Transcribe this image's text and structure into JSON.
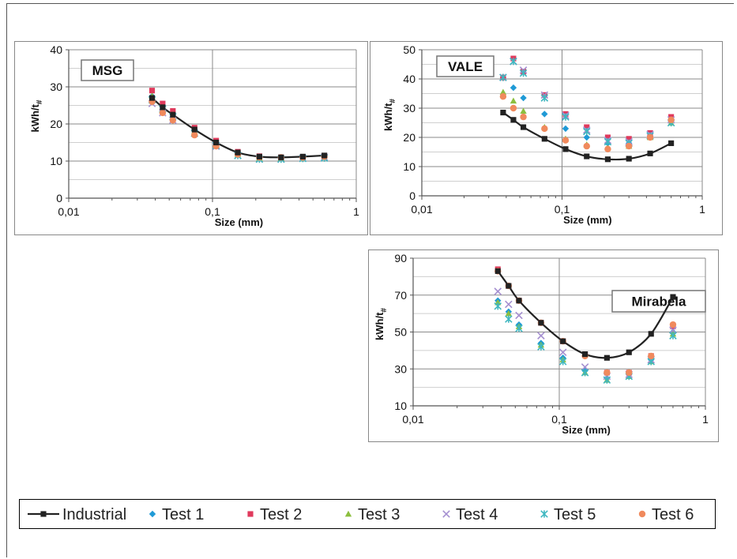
{
  "colors": {
    "Industrial": "#222222",
    "Test 1": "#1f9ad6",
    "Test 2": "#e03a5c",
    "Test 3": "#8cbf3f",
    "Test 4": "#a58fd0",
    "Test 5": "#3fb7c0",
    "Test 6": "#f08a5d"
  },
  "markers": {
    "Industrial": "square-line",
    "Test 1": "diamond",
    "Test 2": "square",
    "Test 3": "triangle",
    "Test 4": "x",
    "Test 5": "star",
    "Test 6": "circle"
  },
  "legend": {
    "entries": [
      "Industrial",
      "Test 1",
      "Test 2",
      "Test 3",
      "Test 4",
      "Test 5",
      "Test 6"
    ]
  },
  "chart_data": [
    {
      "type": "scatter",
      "title": "MSG",
      "xlabel": "Size (mm)",
      "ylabel": "kWh/t",
      "ylabel_sub": "#",
      "x_scale": "log",
      "xlim": [
        0.01,
        1
      ],
      "ylim": [
        0,
        40
      ],
      "yticks": [
        0,
        10,
        20,
        30,
        40
      ],
      "xtick_labels": [
        "0,01",
        "0,1",
        "1"
      ],
      "grid": true,
      "x": [
        0.038,
        0.045,
        0.053,
        0.075,
        0.106,
        0.15,
        0.212,
        0.3,
        0.425,
        0.6
      ],
      "series": [
        {
          "name": "Industrial",
          "values": [
            27,
            24.5,
            22.5,
            18.5,
            15,
            12.3,
            11.2,
            11,
            11.2,
            11.5
          ]
        },
        {
          "name": "Test 1",
          "values": [
            27.5,
            25,
            22.5,
            18.5,
            14.8,
            12,
            11,
            10.8,
            11,
            11.2
          ]
        },
        {
          "name": "Test 2",
          "values": [
            29,
            25.5,
            23.5,
            19,
            15.5,
            12.5,
            11.3,
            11,
            11,
            11.3
          ]
        },
        {
          "name": "Test 3",
          "values": [
            27.5,
            24.5,
            22.5,
            18,
            14.5,
            11.8,
            10.8,
            10.8,
            10.8,
            11
          ]
        },
        {
          "name": "Test 4",
          "values": [
            25.5,
            23,
            21,
            17.5,
            14,
            11.5,
            10.5,
            10.5,
            10.8,
            11
          ]
        },
        {
          "name": "Test 5",
          "values": [
            26.5,
            24,
            22,
            17.5,
            14.2,
            11.5,
            10.5,
            10.5,
            10.7,
            10.8
          ]
        },
        {
          "name": "Test 6",
          "values": [
            26,
            23,
            21,
            17,
            14,
            11.8,
            11,
            11,
            11,
            11.2
          ]
        }
      ]
    },
    {
      "type": "scatter",
      "title": "VALE",
      "xlabel": "Size (mm)",
      "ylabel": "kWh/t",
      "ylabel_sub": "#",
      "x_scale": "log",
      "xlim": [
        0.01,
        1
      ],
      "ylim": [
        0,
        50
      ],
      "yticks": [
        0,
        10,
        20,
        30,
        40,
        50
      ],
      "xtick_labels": [
        "0,01",
        "0,1",
        "1"
      ],
      "grid": true,
      "x": [
        0.038,
        0.045,
        0.053,
        0.075,
        0.106,
        0.15,
        0.212,
        0.3,
        0.425,
        0.6
      ],
      "series": [
        {
          "name": "Industrial",
          "values": [
            28.5,
            26,
            23.5,
            19.5,
            16,
            13.5,
            12.5,
            12.7,
            14.5,
            18
          ]
        },
        {
          "name": "Test 1",
          "values": [
            40.5,
            37,
            33.5,
            28,
            23,
            20,
            18,
            18,
            20.5,
            25.5
          ]
        },
        {
          "name": "Test 2",
          "values": [
            40.5,
            47,
            42.5,
            34.5,
            28,
            23.5,
            20,
            19.5,
            21.5,
            27
          ]
        },
        {
          "name": "Test 3",
          "values": [
            35.5,
            32.5,
            29,
            23.5,
            19.5,
            17.5,
            16.5,
            17,
            20,
            25
          ]
        },
        {
          "name": "Test 4",
          "values": [
            40.5,
            46,
            43,
            34.5,
            27.5,
            22.5,
            19,
            18.5,
            21,
            26
          ]
        },
        {
          "name": "Test 5",
          "values": [
            40.5,
            46,
            42,
            33.5,
            27,
            22,
            18.5,
            18,
            20.5,
            25
          ]
        },
        {
          "name": "Test 6",
          "values": [
            34,
            30,
            27,
            23,
            19,
            17,
            16,
            17,
            20,
            26
          ]
        }
      ]
    },
    {
      "type": "scatter",
      "title": "Mirabela",
      "xlabel": "Size (mm)",
      "ylabel": "kWh/t",
      "ylabel_sub": "#",
      "x_scale": "log",
      "xlim": [
        0.01,
        1
      ],
      "ylim": [
        10,
        90
      ],
      "yticks": [
        10,
        30,
        50,
        70,
        90
      ],
      "xtick_labels": [
        "0,01",
        "0,1",
        "1"
      ],
      "grid": true,
      "x": [
        0.038,
        0.045,
        0.053,
        0.075,
        0.106,
        0.15,
        0.212,
        0.3,
        0.425,
        0.6
      ],
      "series": [
        {
          "name": "Industrial",
          "values": [
            83,
            75,
            67,
            55,
            45,
            38,
            36,
            39,
            49,
            69
          ]
        },
        {
          "name": "Test 1",
          "values": [
            67,
            61,
            54,
            44,
            36,
            29,
            25,
            27,
            35,
            50
          ]
        },
        {
          "name": "Test 2",
          "values": [
            84,
            75,
            67,
            55,
            45,
            38,
            28,
            28,
            37,
            53
          ]
        },
        {
          "name": "Test 3",
          "values": [
            66,
            60,
            53,
            43,
            35,
            28,
            24,
            26,
            34,
            49
          ]
        },
        {
          "name": "Test 4",
          "values": [
            72,
            65,
            59,
            48,
            39,
            31,
            26,
            27,
            35,
            51
          ]
        },
        {
          "name": "Test 5",
          "values": [
            64,
            57,
            52,
            42,
            34,
            28,
            24,
            26,
            34,
            48
          ]
        },
        {
          "name": "Test 6",
          "values": [
            83,
            75,
            67,
            55,
            45,
            37,
            28,
            28,
            37,
            54
          ]
        }
      ]
    }
  ]
}
